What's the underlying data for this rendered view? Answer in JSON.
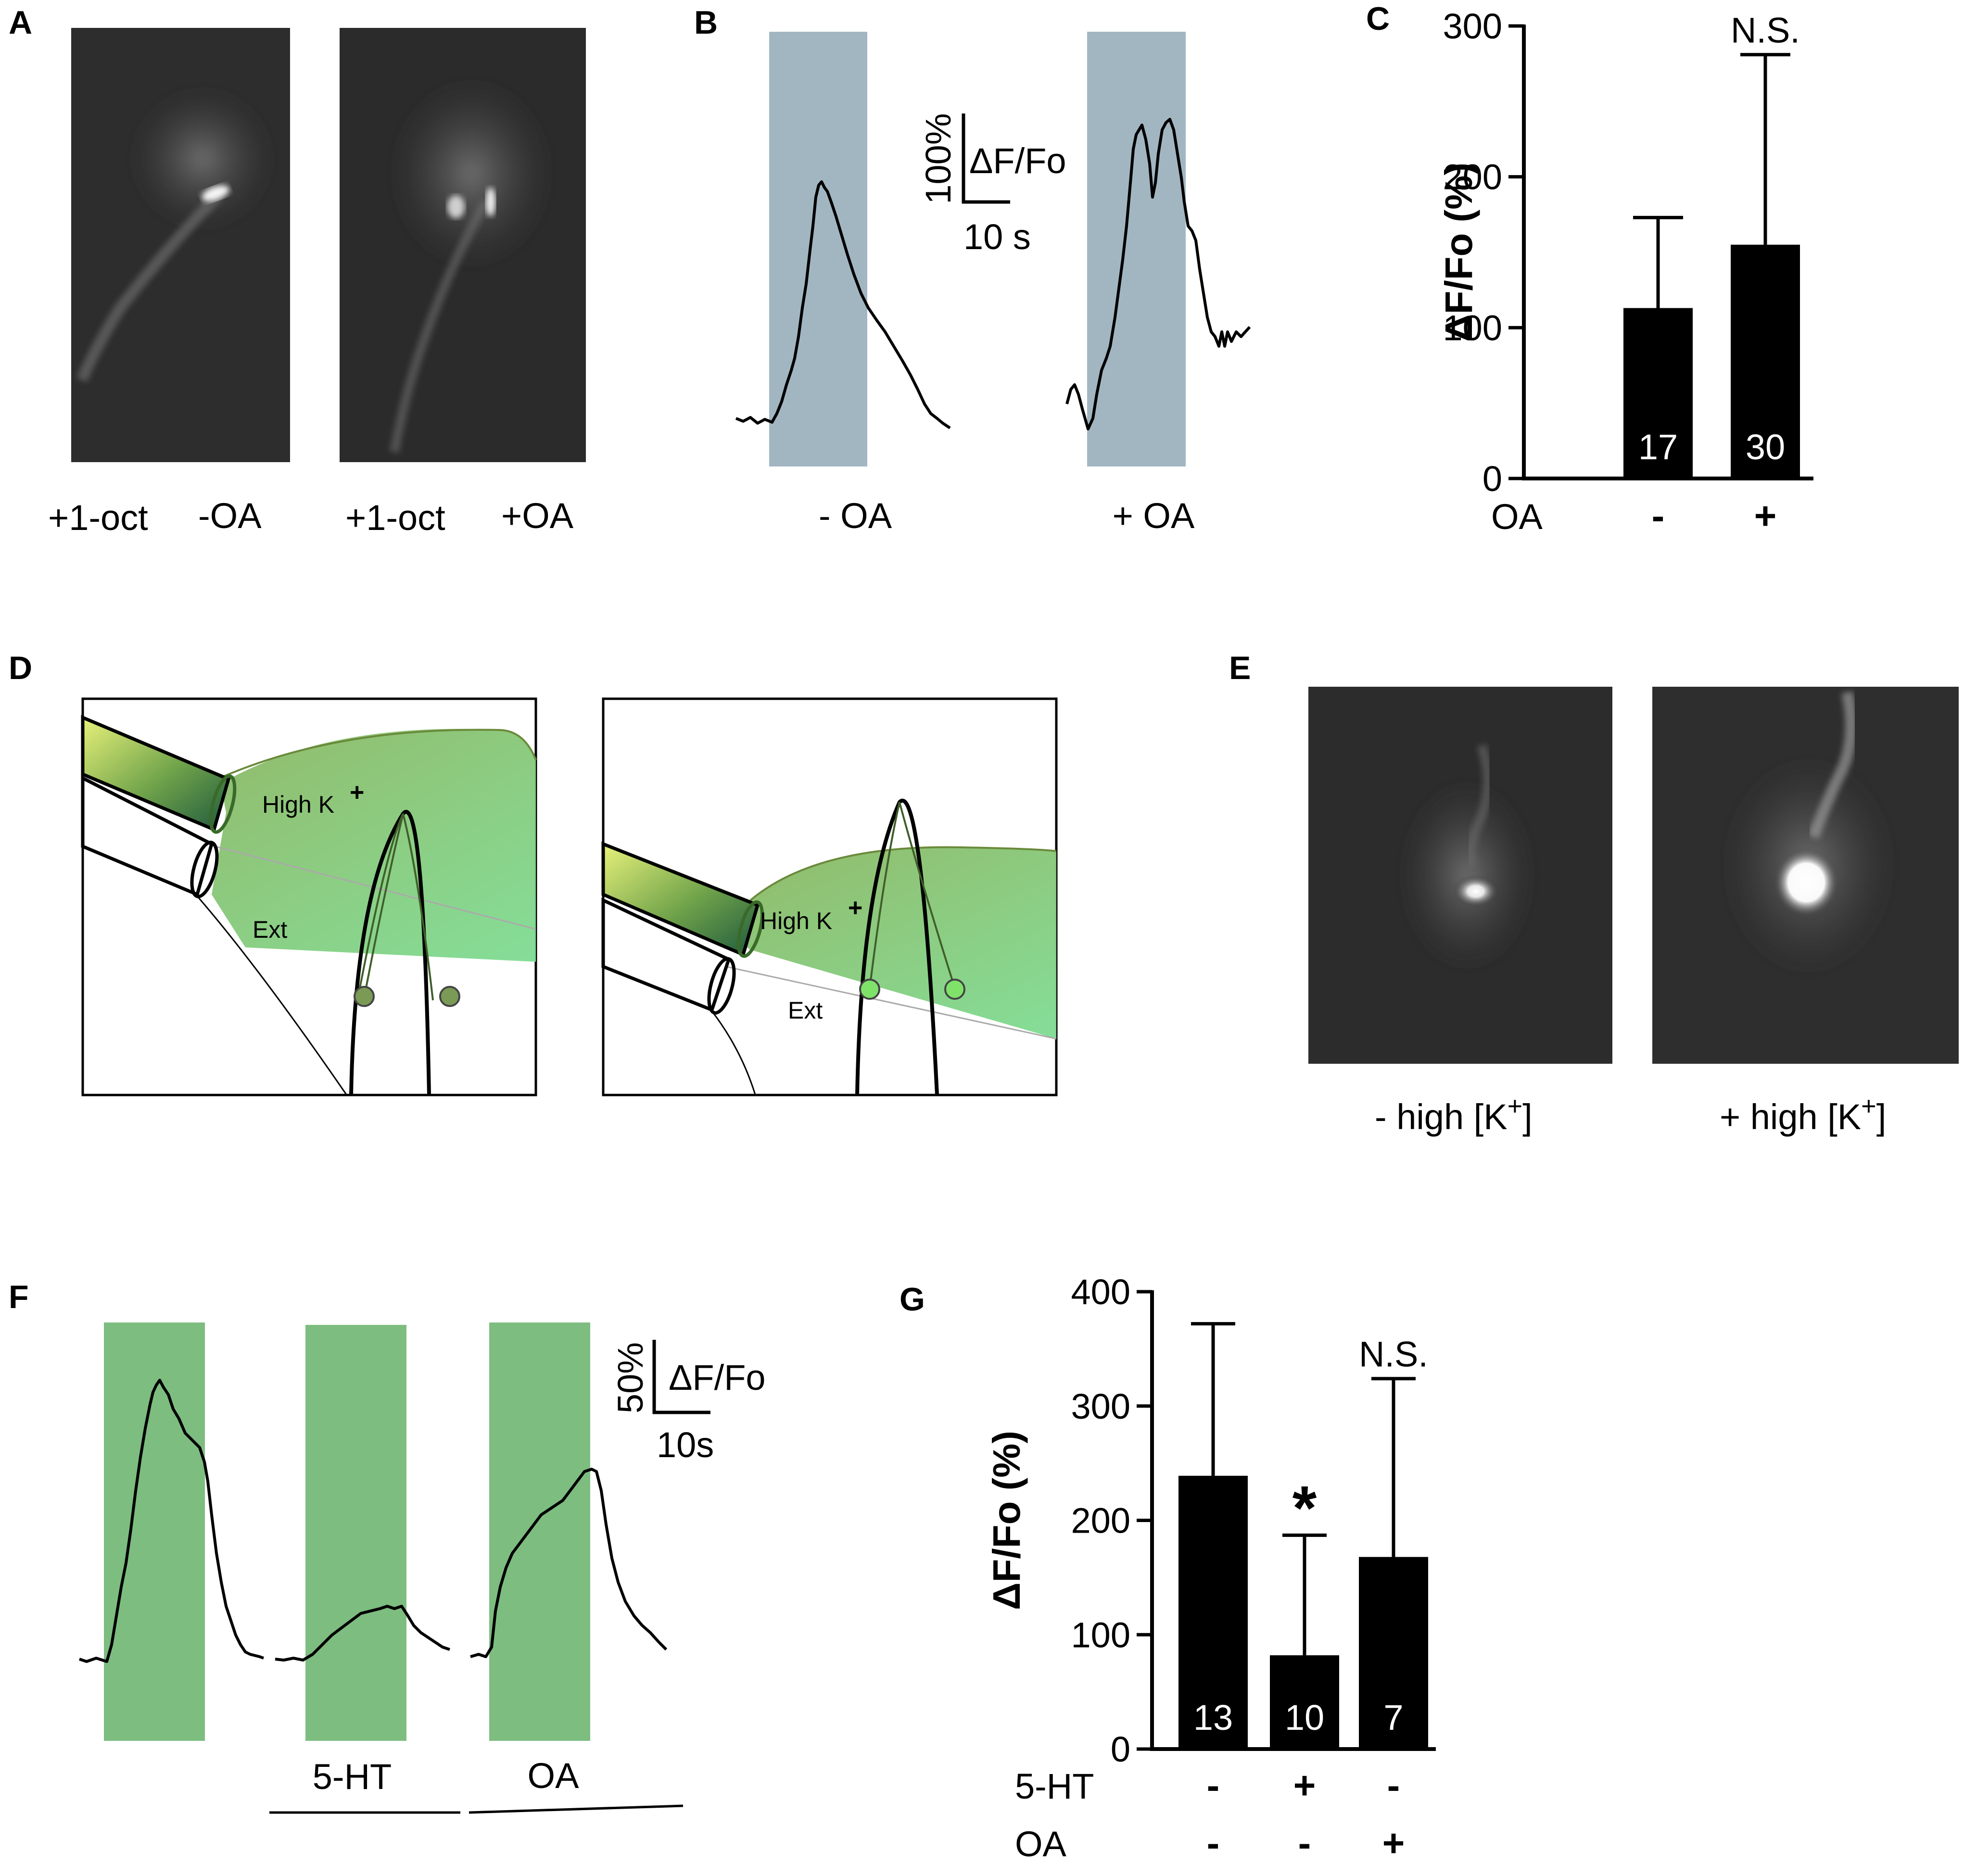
{
  "panels": {
    "A": {
      "letter": "A",
      "captions": [
        "+1-oct",
        "-OA",
        "+1-oct",
        "+OA"
      ]
    },
    "B": {
      "letter": "B",
      "conditions": [
        "- OA",
        "+ OA"
      ],
      "scalebar_y": "100%",
      "scalebar_unit": "ΔF/Fo",
      "scalebar_x": "10 s",
      "stim_color": "#a2b6c2"
    },
    "C": {
      "letter": "C"
    },
    "D": {
      "letter": "D",
      "labels": [
        "High K",
        "+",
        "Ext"
      ],
      "colors": {
        "fill": "#8fbf5e",
        "pipette": "#3f6f2a",
        "cell_body": "#7a9a55"
      }
    },
    "E": {
      "letter": "E",
      "captions": [
        "- high [K",
        "+",
        "]",
        "+ high [K",
        "+",
        "]"
      ]
    },
    "F": {
      "letter": "F",
      "scalebar_y": "50%",
      "scalebar_unit": "ΔF/Fo",
      "scalebar_x": "10s",
      "drugs": [
        "5-HT",
        "OA"
      ],
      "stim_color": "#7dbd80"
    },
    "G": {
      "letter": "G"
    }
  },
  "chart_data": [
    {
      "id": "C",
      "type": "bar",
      "ylabel": "ΔF/Fo (%)",
      "ylim": [
        0,
        300
      ],
      "yticks": [
        0,
        100,
        200,
        300
      ],
      "row_labels": [
        "OA"
      ],
      "row_values": [
        [
          "-",
          "+"
        ]
      ],
      "values": [
        113,
        155
      ],
      "errors": [
        60,
        126
      ],
      "n_labels": [
        "17",
        "30"
      ],
      "annotations": [
        "",
        "N.S."
      ],
      "bar_color": "#000000"
    },
    {
      "id": "G",
      "type": "bar",
      "ylabel": "ΔF/Fo (%)",
      "ylim": [
        0,
        400
      ],
      "yticks": [
        0,
        100,
        200,
        300,
        400
      ],
      "row_labels": [
        "5-HT",
        "OA"
      ],
      "row_values": [
        [
          "-",
          "+",
          "-"
        ],
        [
          "-",
          "-",
          "+"
        ]
      ],
      "values": [
        239,
        82,
        168
      ],
      "errors": [
        133,
        105,
        156
      ],
      "n_labels": [
        "13",
        "10",
        "7"
      ],
      "annotations": [
        "",
        "*",
        "N.S."
      ],
      "bar_color": "#000000"
    }
  ]
}
